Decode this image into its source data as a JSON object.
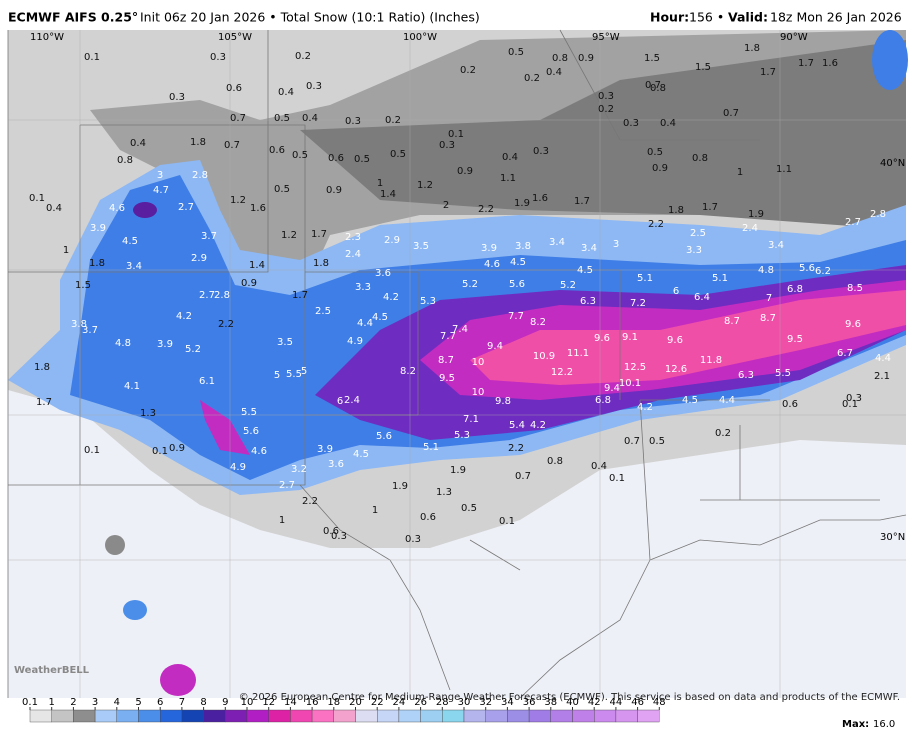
{
  "header": {
    "model": "ECMWF AIFS 0.25°",
    "rest": "Init 06z 20 Jan 2026 • Total Snow (10:1 Ratio) (Inches)",
    "hour_key": "Hour:",
    "hour_value": "156 •",
    "valid_key": "Valid:",
    "valid_value": "18z Mon 26 Jan 2026"
  },
  "coords": [
    "110°W",
    "105°W",
    "100°W",
    "95°W",
    "90°W",
    "40°N",
    "30°N"
  ],
  "copyright": "© 2026 European Centre for Medium-Range Weather Forecasts (ECMWF). This service is based on data and products of the ECMWF.",
  "logo": "WeatherBELL",
  "legend": {
    "ticks": [
      0.1,
      1,
      2,
      3,
      4,
      5,
      6,
      7,
      8,
      9,
      10,
      12,
      14,
      16,
      18,
      20,
      22,
      24,
      26,
      28,
      30,
      32,
      34,
      36,
      38,
      40,
      42,
      44,
      46,
      48
    ],
    "colors": [
      "#e6e6e6",
      "#c4c4c4",
      "#8e8e8e",
      "#a9cbf7",
      "#7ab0f2",
      "#4b8ee9",
      "#2666dc",
      "#1444b4",
      "#4a1fa0",
      "#7d1fb2",
      "#b01ec4",
      "#de22a6",
      "#f046b2",
      "#fb72c3",
      "#f2a2cc",
      "#dcdcf2",
      "#c6d6f6",
      "#aed2f8",
      "#9ccff2",
      "#8ad6ee",
      "#b5b5ee",
      "#a8a0ea",
      "#9c8ee6",
      "#a07ce6",
      "#b27ee8",
      "#c080ea",
      "#cc8aee",
      "#d696f0",
      "#e0a2f2"
    ]
  },
  "max": {
    "label": "Max:",
    "value": "16.0"
  },
  "map_labels": [
    0.1,
    0.3,
    0.2,
    0.5,
    0.8,
    0.9,
    1.8,
    0.3,
    0.6,
    0.4,
    0.3,
    0.2,
    0.2,
    0.4,
    1.5,
    1.5,
    1.7,
    1.7,
    1.6,
    0.7,
    0.5,
    0.4,
    0.3,
    0.2,
    0.3,
    0.2,
    0.7,
    0.8,
    0.4,
    1.8,
    0.7,
    0.6,
    0.5,
    0.6,
    0.5,
    0.5,
    0.1,
    0.3,
    0.4,
    0.3,
    0.3,
    0.4,
    0.7,
    0.8,
    3.0,
    2.8,
    1.0,
    1.2,
    0.9,
    1.1,
    0.5,
    0.8,
    0.9,
    0.1,
    0.4,
    4.7,
    4.6,
    2.7,
    1.2,
    1.6,
    0.5,
    0.9,
    1.4,
    2.0,
    2.2,
    1.9,
    1.6,
    1.7,
    1.8,
    1.7,
    1.9,
    1.0,
    1.1,
    3.9,
    4.5,
    3.7,
    1.2,
    1.7,
    2.3,
    2.9,
    3.5,
    3.9,
    3.8,
    3.4,
    3.4,
    3.0,
    2.2,
    2.5,
    2.4,
    2.7,
    2.8,
    1.0,
    1.8,
    3.4,
    2.9,
    1.4,
    1.8,
    2.4,
    4.6,
    4.5,
    4.5,
    3.3,
    3.4,
    4.8,
    5.6,
    6.2,
    0.9,
    3.6,
    5.2,
    5.6,
    5.2,
    5.1,
    5.1,
    6.8,
    8.5,
    1.5,
    2.7,
    2.8,
    1.7,
    3.3,
    4.2,
    5.3,
    6.0,
    6.4,
    7.0,
    6.3,
    7.2,
    3.8,
    3.7,
    4.2,
    2.2,
    2.5,
    4.4,
    4.5,
    7.7,
    8.2,
    7.4,
    7.7,
    8.7,
    8.7,
    9.6,
    4.8,
    3.9,
    5.2,
    3.5,
    4.9,
    9.4,
    9.6,
    9.1,
    9.6,
    9.5,
    6.7,
    4.4,
    1.8,
    4.1,
    6.1,
    5.0,
    5.5,
    5.0,
    8.2,
    8.7,
    10.0,
    10.9,
    11.1,
    12.5,
    12.6,
    11.8,
    6.3,
    5.5,
    2.1,
    9.5,
    12.2,
    10.1,
    9.4,
    1.7,
    1.3,
    5.5,
    6.0,
    2.4,
    10.0,
    9.8,
    6.8,
    4.2,
    4.5,
    4.4,
    0.6,
    0.1,
    0.3,
    5.6,
    4.6,
    7.1,
    5.4,
    4.2,
    5.6,
    5.3,
    5.1,
    0.7,
    0.5,
    0.2,
    0.1,
    0.1,
    0.9,
    3.9,
    4.5,
    2.2,
    0.8,
    3.6,
    4.9,
    3.2,
    1.9,
    0.7,
    0.4,
    0.1,
    2.7,
    1.9,
    1.3,
    2.2,
    1.0,
    0.6,
    0.5,
    0.1,
    0.6,
    0.3,
    0.3,
    1.0
  ]
}
